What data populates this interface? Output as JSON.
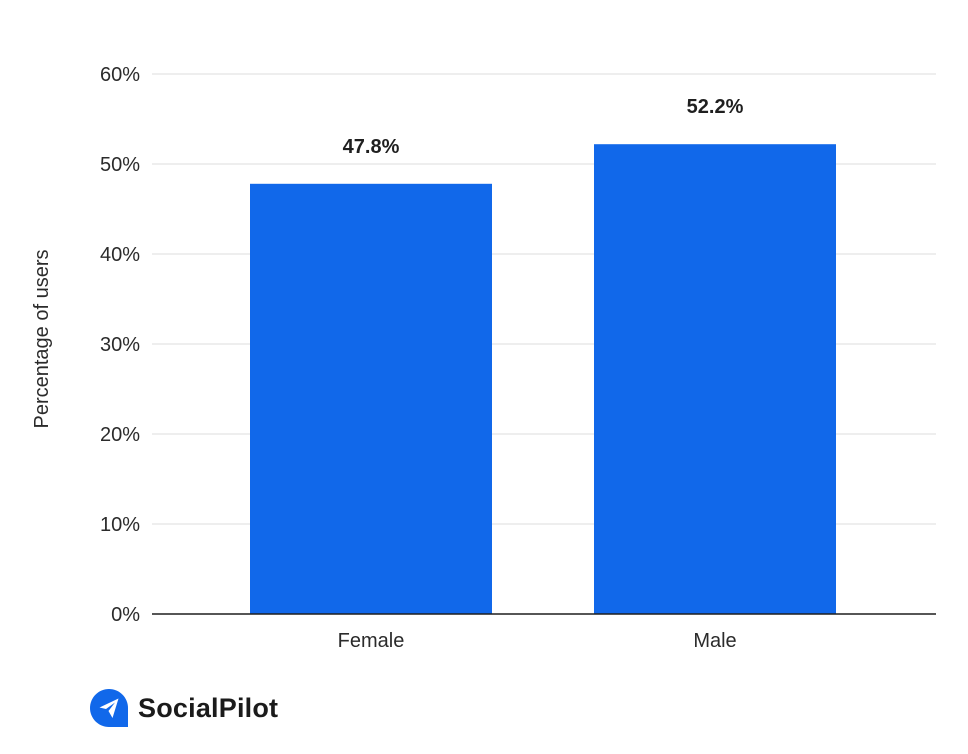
{
  "chart_data": {
    "type": "bar",
    "categories": [
      "Female",
      "Male"
    ],
    "values": [
      47.8,
      52.2
    ],
    "data_labels": [
      "47.8%",
      "52.2%"
    ],
    "title": "",
    "xlabel": "",
    "ylabel": "Percentage of users",
    "ylim": [
      0,
      60
    ],
    "y_ticks": [
      0,
      10,
      20,
      30,
      40,
      50,
      60
    ],
    "y_tick_labels": [
      "0%",
      "10%",
      "20%",
      "30%",
      "40%",
      "50%",
      "60%"
    ],
    "grid": true,
    "legend": "none",
    "bar_color": "#1168EA"
  },
  "brand": {
    "name": "SocialPilot",
    "logo_icon": "paper-plane-icon",
    "logo_color": "#1168EA"
  }
}
